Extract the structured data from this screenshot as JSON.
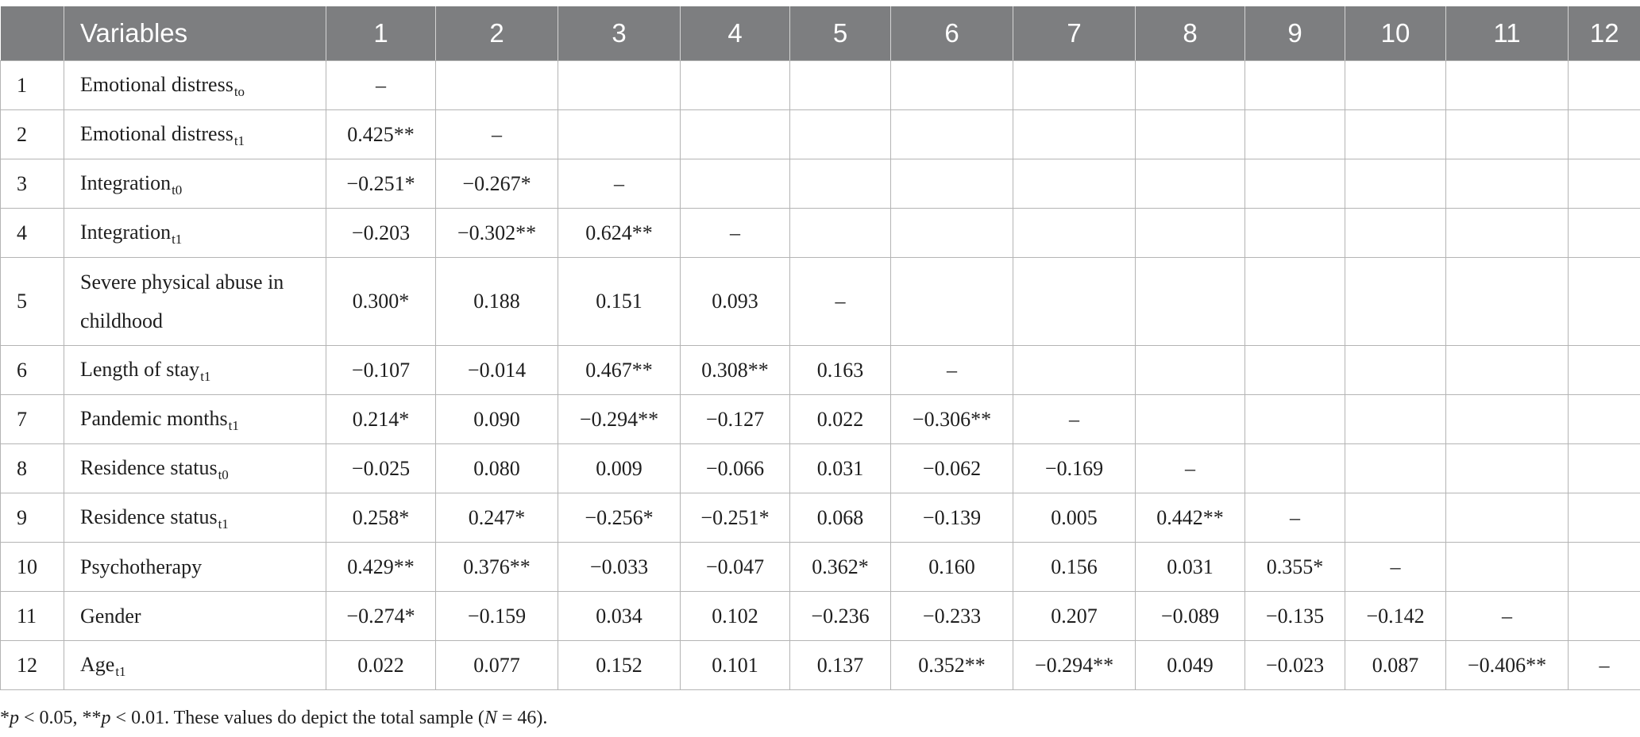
{
  "table": {
    "header": {
      "index": "",
      "variables": "Variables",
      "columns": [
        "1",
        "2",
        "3",
        "4",
        "5",
        "6",
        "7",
        "8",
        "9",
        "10",
        "11",
        "12"
      ]
    },
    "rows": [
      {
        "idx": "1",
        "name": "Emotional distress",
        "sub": "to",
        "cells": [
          "–",
          "",
          "",
          "",
          "",
          "",
          "",
          "",
          "",
          "",
          "",
          ""
        ]
      },
      {
        "idx": "2",
        "name": "Emotional distress",
        "sub": "t1",
        "cells": [
          "0.425**",
          "–",
          "",
          "",
          "",
          "",
          "",
          "",
          "",
          "",
          "",
          ""
        ]
      },
      {
        "idx": "3",
        "name": "Integration",
        "sub": "t0",
        "cells": [
          "−0.251*",
          "−0.267*",
          "–",
          "",
          "",
          "",
          "",
          "",
          "",
          "",
          "",
          ""
        ]
      },
      {
        "idx": "4",
        "name": "Integration",
        "sub": "t1",
        "cells": [
          "−0.203",
          "−0.302**",
          "0.624**",
          "–",
          "",
          "",
          "",
          "",
          "",
          "",
          "",
          ""
        ]
      },
      {
        "idx": "5",
        "name": "Severe physical abuse in childhood",
        "sub": "",
        "cells": [
          "0.300*",
          "0.188",
          "0.151",
          "0.093",
          "–",
          "",
          "",
          "",
          "",
          "",
          "",
          ""
        ]
      },
      {
        "idx": "6",
        "name": "Length of stay",
        "sub": "t1",
        "cells": [
          "−0.107",
          "−0.014",
          "0.467**",
          "0.308**",
          "0.163",
          "–",
          "",
          "",
          "",
          "",
          "",
          ""
        ]
      },
      {
        "idx": "7",
        "name": "Pandemic months",
        "sub": "t1",
        "cells": [
          "0.214*",
          "0.090",
          "−0.294**",
          "−0.127",
          "0.022",
          "−0.306**",
          "–",
          "",
          "",
          "",
          "",
          ""
        ]
      },
      {
        "idx": "8",
        "name": "Residence status",
        "sub": "t0",
        "cells": [
          "−0.025",
          "0.080",
          "0.009",
          "−0.066",
          "0.031",
          "−0.062",
          "−0.169",
          "–",
          "",
          "",
          "",
          ""
        ]
      },
      {
        "idx": "9",
        "name": "Residence status",
        "sub": "t1",
        "cells": [
          "0.258*",
          "0.247*",
          "−0.256*",
          "−0.251*",
          "0.068",
          "−0.139",
          "0.005",
          "0.442**",
          "–",
          "",
          "",
          ""
        ]
      },
      {
        "idx": "10",
        "name": "Psychotherapy",
        "sub": "",
        "cells": [
          "0.429**",
          "0.376**",
          "−0.033",
          "−0.047",
          "0.362*",
          "0.160",
          "0.156",
          "0.031",
          "0.355*",
          "–",
          "",
          ""
        ]
      },
      {
        "idx": "11",
        "name": "Gender",
        "sub": "",
        "cells": [
          "−0.274*",
          "−0.159",
          "0.034",
          "0.102",
          "−0.236",
          "−0.233",
          "0.207",
          "−0.089",
          "−0.135",
          "−0.142",
          "–",
          ""
        ]
      },
      {
        "idx": "12",
        "name": "Age",
        "sub": "t1",
        "cells": [
          "0.022",
          "0.077",
          "0.152",
          "0.101",
          "0.137",
          "0.352**",
          "−0.294**",
          "0.049",
          "−0.023",
          "0.087",
          "−0.406**",
          "–"
        ]
      }
    ]
  },
  "footnote": {
    "star1": "*",
    "p1": "p",
    "t1": " < 0.05, **",
    "p2": "p",
    "t2": " < 0.01. These values do depict the total sample (",
    "n": "N",
    "t3": " = 46)."
  }
}
